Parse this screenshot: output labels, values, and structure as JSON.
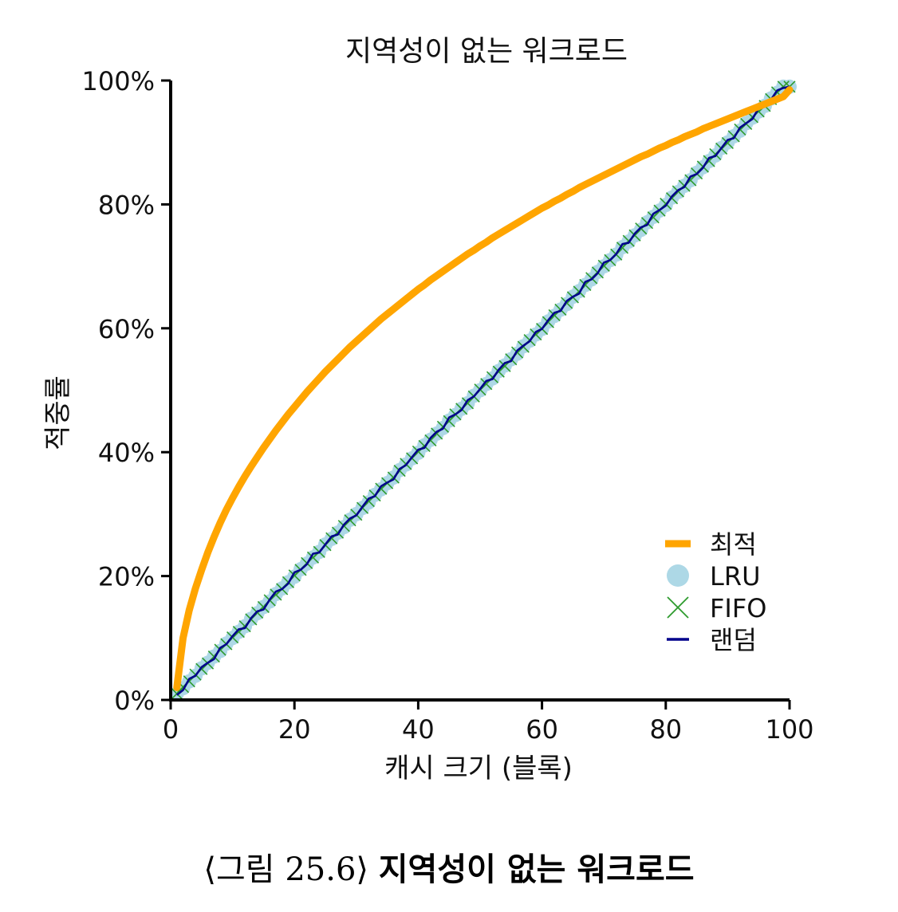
{
  "chart_data": {
    "type": "line",
    "title": "지역성이 없는 워크로드",
    "xlabel": "캐시 크기 (블록)",
    "ylabel": "적중률",
    "xlim": [
      0,
      100
    ],
    "ylim": [
      0,
      100
    ],
    "x_ticks": [
      "0",
      "20",
      "40",
      "60",
      "80",
      "100"
    ],
    "y_ticks": [
      "0%",
      "20%",
      "40%",
      "60%",
      "80%",
      "100%"
    ],
    "grid": false,
    "legend_position": "bottom-right",
    "x": [
      1,
      2,
      3,
      4,
      5,
      6,
      7,
      8,
      9,
      10,
      11,
      12,
      13,
      14,
      15,
      16,
      17,
      18,
      19,
      20,
      21,
      22,
      23,
      24,
      25,
      26,
      27,
      28,
      29,
      30,
      31,
      32,
      33,
      34,
      35,
      36,
      37,
      38,
      39,
      40,
      41,
      42,
      43,
      44,
      45,
      46,
      47,
      48,
      49,
      50,
      51,
      52,
      53,
      54,
      55,
      56,
      57,
      58,
      59,
      60,
      61,
      62,
      63,
      64,
      65,
      66,
      67,
      68,
      69,
      70,
      71,
      72,
      73,
      74,
      75,
      76,
      77,
      78,
      79,
      80,
      81,
      82,
      83,
      84,
      85,
      86,
      87,
      88,
      89,
      90,
      91,
      92,
      93,
      94,
      95,
      96,
      97,
      98,
      99,
      100
    ],
    "series": [
      {
        "name": "최적",
        "color": "#FFA500",
        "style": "line",
        "values": [
          2.0,
          10.0,
          14.5,
          18.0,
          21.0,
          23.8,
          26.3,
          28.6,
          30.7,
          32.6,
          34.4,
          36.1,
          37.7,
          39.2,
          40.7,
          42.1,
          43.5,
          44.8,
          46.1,
          47.3,
          48.5,
          49.7,
          50.8,
          51.9,
          53.0,
          54.0,
          55.0,
          56.0,
          57.0,
          57.9,
          58.8,
          59.7,
          60.6,
          61.5,
          62.3,
          63.1,
          63.9,
          64.7,
          65.5,
          66.3,
          67.0,
          67.8,
          68.5,
          69.2,
          69.9,
          70.6,
          71.3,
          72.0,
          72.6,
          73.3,
          73.9,
          74.6,
          75.2,
          75.8,
          76.4,
          77.0,
          77.6,
          78.2,
          78.8,
          79.4,
          79.9,
          80.5,
          81.0,
          81.6,
          82.1,
          82.7,
          83.2,
          83.7,
          84.2,
          84.7,
          85.2,
          85.7,
          86.2,
          86.7,
          87.2,
          87.7,
          88.1,
          88.6,
          89.1,
          89.5,
          90.0,
          90.4,
          90.9,
          91.3,
          91.7,
          92.2,
          92.6,
          93.0,
          93.4,
          93.8,
          94.2,
          94.6,
          95.0,
          95.4,
          95.8,
          96.2,
          96.6,
          97.0,
          97.4,
          98.5
        ]
      },
      {
        "name": "LRU",
        "color": "#ADD8E6",
        "style": "marker-circle",
        "values": [
          1.0,
          1.9,
          3.0,
          3.9,
          5.1,
          6.0,
          7.0,
          7.9,
          9.1,
          10.0,
          11.0,
          11.9,
          13.1,
          14.0,
          15.0,
          15.9,
          17.1,
          18.0,
          19.0,
          19.9,
          21.1,
          22.0,
          23.0,
          23.9,
          25.1,
          26.0,
          27.0,
          27.9,
          29.1,
          30.0,
          31.0,
          31.9,
          33.1,
          34.0,
          35.0,
          35.9,
          37.1,
          38.0,
          39.0,
          39.9,
          41.1,
          42.0,
          43.0,
          43.9,
          45.1,
          46.0,
          47.0,
          47.9,
          49.1,
          50.0,
          51.0,
          51.9,
          53.1,
          54.0,
          55.0,
          55.9,
          57.1,
          58.0,
          59.0,
          59.9,
          61.1,
          62.0,
          63.0,
          63.9,
          65.1,
          66.0,
          67.0,
          67.9,
          69.1,
          70.0,
          71.0,
          71.9,
          73.1,
          74.0,
          75.0,
          75.9,
          77.1,
          78.0,
          79.0,
          79.9,
          81.1,
          82.0,
          83.0,
          83.9,
          85.1,
          86.0,
          87.0,
          87.9,
          89.1,
          90.0,
          91.0,
          91.9,
          93.1,
          94.0,
          95.0,
          95.9,
          97.1,
          98.0,
          99.0,
          99.0
        ]
      },
      {
        "name": "FIFO",
        "color": "#2E9B2E",
        "style": "marker-x",
        "values": [
          1.0,
          2.1,
          3.0,
          4.1,
          5.0,
          5.9,
          7.0,
          8.1,
          9.0,
          10.1,
          11.0,
          11.9,
          13.0,
          14.1,
          15.0,
          16.1,
          17.0,
          17.9,
          19.0,
          20.1,
          21.0,
          22.1,
          23.0,
          23.9,
          25.0,
          26.1,
          27.0,
          28.1,
          29.0,
          29.9,
          31.0,
          32.1,
          33.0,
          34.1,
          35.0,
          35.9,
          37.0,
          38.1,
          39.0,
          40.1,
          41.0,
          41.9,
          43.0,
          44.1,
          45.0,
          46.1,
          47.0,
          47.9,
          49.0,
          50.1,
          51.0,
          52.1,
          53.0,
          53.9,
          55.0,
          56.1,
          57.0,
          58.1,
          59.0,
          59.9,
          61.0,
          62.1,
          63.0,
          64.1,
          65.0,
          65.9,
          67.0,
          68.1,
          69.0,
          70.1,
          71.0,
          71.9,
          73.0,
          74.1,
          75.0,
          76.1,
          77.0,
          77.9,
          79.0,
          80.1,
          81.0,
          82.1,
          83.0,
          83.9,
          85.0,
          86.1,
          87.0,
          88.1,
          89.0,
          89.9,
          91.0,
          92.1,
          93.0,
          94.1,
          95.0,
          95.9,
          97.0,
          98.1,
          99.0,
          99.0
        ]
      },
      {
        "name": "랜덤",
        "color": "#00008B",
        "style": "line-thin",
        "values": [
          0.8,
          1.6,
          3.4,
          3.9,
          5.3,
          6.0,
          6.6,
          8.4,
          9.0,
          10.3,
          11.4,
          11.6,
          13.2,
          14.3,
          14.6,
          16.2,
          17.5,
          17.9,
          18.8,
          20.6,
          21.0,
          21.9,
          23.6,
          23.8,
          25.1,
          26.4,
          26.7,
          28.3,
          29.3,
          29.8,
          31.2,
          32.5,
          32.9,
          34.5,
          35.1,
          35.6,
          37.3,
          37.9,
          39.2,
          40.4,
          40.7,
          42.3,
          43.3,
          43.8,
          45.6,
          46.1,
          46.8,
          48.4,
          49.0,
          50.2,
          51.5,
          51.8,
          53.3,
          54.4,
          54.7,
          56.4,
          57.2,
          57.9,
          59.4,
          59.9,
          61.3,
          62.5,
          62.8,
          64.4,
          65.1,
          65.6,
          67.5,
          67.9,
          68.9,
          70.6,
          71.0,
          72.0,
          73.6,
          73.8,
          75.3,
          76.3,
          76.7,
          78.5,
          79.1,
          79.8,
          81.3,
          82.3,
          82.8,
          84.5,
          84.9,
          85.9,
          87.5,
          87.8,
          89.1,
          90.4,
          90.7,
          92.4,
          93.1,
          93.8,
          95.5,
          95.9,
          96.9,
          98.4,
          98.8,
          99.0
        ]
      }
    ]
  },
  "caption": {
    "prefix": "⟨그림 25.6⟩",
    "title": "지역성이 없는 워크로드"
  }
}
